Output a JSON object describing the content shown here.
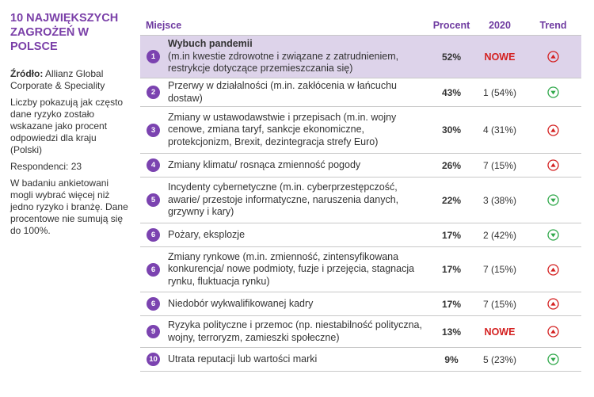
{
  "sidebar": {
    "title": "10 NAJWIĘKSZYCH ZAGROŻEŃ W POLSCE",
    "source_label": "Źródło:",
    "source_text": " Allianz Global Corporate & Speciality",
    "note1": "Liczby pokazują jak często dane ryzyko zostało wskazane jako procent odpowiedzi dla kraju (Polski)",
    "respondents": "Respondenci: 23",
    "note2": "W badaniu ankietowani mogli wybrać więcej niż jedno ryzyko i branżę. Dane procentowe nie sumują się do 100%."
  },
  "table": {
    "headers": {
      "place": "Miejsce",
      "pct": "Procent",
      "year": "2020",
      "trend": "Trend"
    },
    "rows": [
      {
        "num": "1",
        "title": "Wybuch pandemii",
        "desc": "(m.in kwestie zdrowotne i związane z zatrudnieniem, restrykcje dotyczące przemieszczania się)",
        "pct": "52%",
        "year": "NOWE",
        "trend": "up"
      },
      {
        "num": "2",
        "title": "",
        "desc": "Przerwy w działalności (m.in. zakłócenia w łańcuchu dostaw)",
        "pct": "43%",
        "year": "1 (54%)",
        "trend": "down"
      },
      {
        "num": "3",
        "title": "",
        "desc": "Zmiany w ustawodawstwie i przepisach (m.in. wojny cenowe, zmiana taryf, sankcje ekonomiczne, protekcjonizm, Brexit, dezintegracja strefy Euro)",
        "pct": "30%",
        "year": "4 (31%)",
        "trend": "up"
      },
      {
        "num": "4",
        "title": "",
        "desc": "Zmiany klimatu/ rosnąca zmienność pogody",
        "pct": "26%",
        "year": "7 (15%)",
        "trend": "up"
      },
      {
        "num": "5",
        "title": "",
        "desc": "Incydenty cybernetyczne (m.in. cyberprzestępczość, awarie/ przestoje informatyczne, naruszenia danych, grzywny i kary)",
        "pct": "22%",
        "year": "3 (38%)",
        "trend": "down"
      },
      {
        "num": "6",
        "title": "",
        "desc": "Pożary, eksplozje",
        "pct": "17%",
        "year": "2 (42%)",
        "trend": "down"
      },
      {
        "num": "6",
        "title": "",
        "desc": "Zmiany rynkowe (m.in. zmienność, zintensyfikowana konkurencja/ nowe podmioty, fuzje i przejęcia, stagnacja rynku, fluktuacja rynku)",
        "pct": "17%",
        "year": "7 (15%)",
        "trend": "up"
      },
      {
        "num": "6",
        "title": "",
        "desc": "Niedobór wykwalifikowanej kadry",
        "pct": "17%",
        "year": "7 (15%)",
        "trend": "up"
      },
      {
        "num": "9",
        "title": "",
        "desc": "Ryzyka polityczne i przemoc (np. niestabilność polityczna, wojny, terroryzm, zamieszki społeczne)",
        "pct": "13%",
        "year": "NOWE",
        "trend": "up"
      },
      {
        "num": "10",
        "title": "",
        "desc": " Utrata reputacji lub wartości marki",
        "pct": "9%",
        "year": "5 (23%)",
        "trend": "down"
      }
    ]
  },
  "colors": {
    "accent": "#7b43b0",
    "highlight": "#ddd3ea",
    "new": "#d42020",
    "up": "#d42020",
    "down": "#2fa84a"
  }
}
